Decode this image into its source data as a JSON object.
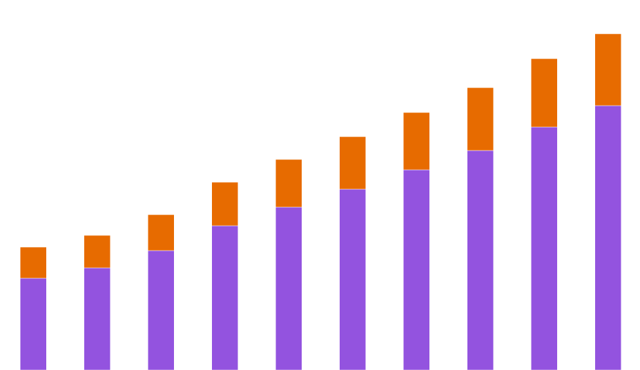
{
  "chart_data": {
    "type": "stacked_bar",
    "categories": [
      null,
      null,
      null,
      null,
      null,
      null,
      null,
      null,
      null,
      null
    ],
    "series": [
      {
        "color": "#9353df",
        "values": [
          133,
          148,
          173,
          209,
          236,
          262,
          290,
          318,
          352,
          383
        ]
      },
      {
        "color": "#e76b00",
        "values": [
          45,
          47,
          52,
          63,
          69,
          76,
          83,
          91,
          99,
          104
        ]
      }
    ],
    "ylim": [
      0,
      536
    ]
  }
}
